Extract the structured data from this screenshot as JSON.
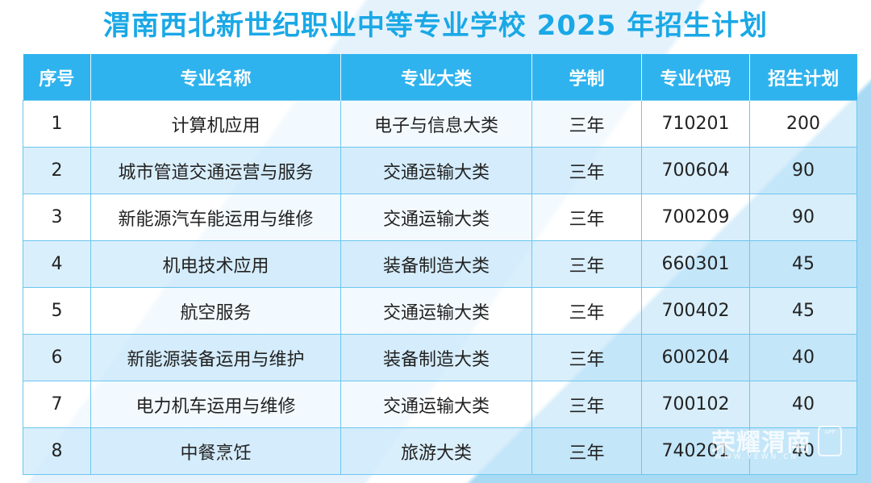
{
  "title": "渭南西北新世纪职业中等专业学校 2025 年招生计划",
  "table": {
    "headers": [
      "序号",
      "专业名称",
      "专业大类",
      "学制",
      "专业代码",
      "招生计划"
    ],
    "rows": [
      [
        "1",
        "计算机应用",
        "电子与信息大类",
        "三年",
        "710201",
        "200"
      ],
      [
        "2",
        "城市管道交通运营与服务",
        "交通运输大类",
        "三年",
        "700604",
        "90"
      ],
      [
        "3",
        "新能源汽车能运用与维修",
        "交通运输大类",
        "三年",
        "700209",
        "90"
      ],
      [
        "4",
        "机电技术应用",
        "装备制造大类",
        "三年",
        "660301",
        "45"
      ],
      [
        "5",
        "航空服务",
        "交通运输大类",
        "三年",
        "700402",
        "45"
      ],
      [
        "6",
        "新能源装备运用与维护",
        "装备制造大类",
        "三年",
        "600204",
        "40"
      ],
      [
        "7",
        "电力机车运用与维修",
        "交通运输大类",
        "三年",
        "700102",
        "40"
      ],
      [
        "8",
        "中餐烹饪",
        "旅游大类",
        "三年",
        "740201",
        "40"
      ]
    ]
  },
  "watermark": {
    "text": "荣耀渭南",
    "sub": "WWW.YEWN.CN",
    "app_label": "APP"
  },
  "colors": {
    "title": "#1aa8e6",
    "header_bg": "#2fb3ee",
    "row_alt_bg": "#cdeafb",
    "border": "#6cc6ef"
  }
}
